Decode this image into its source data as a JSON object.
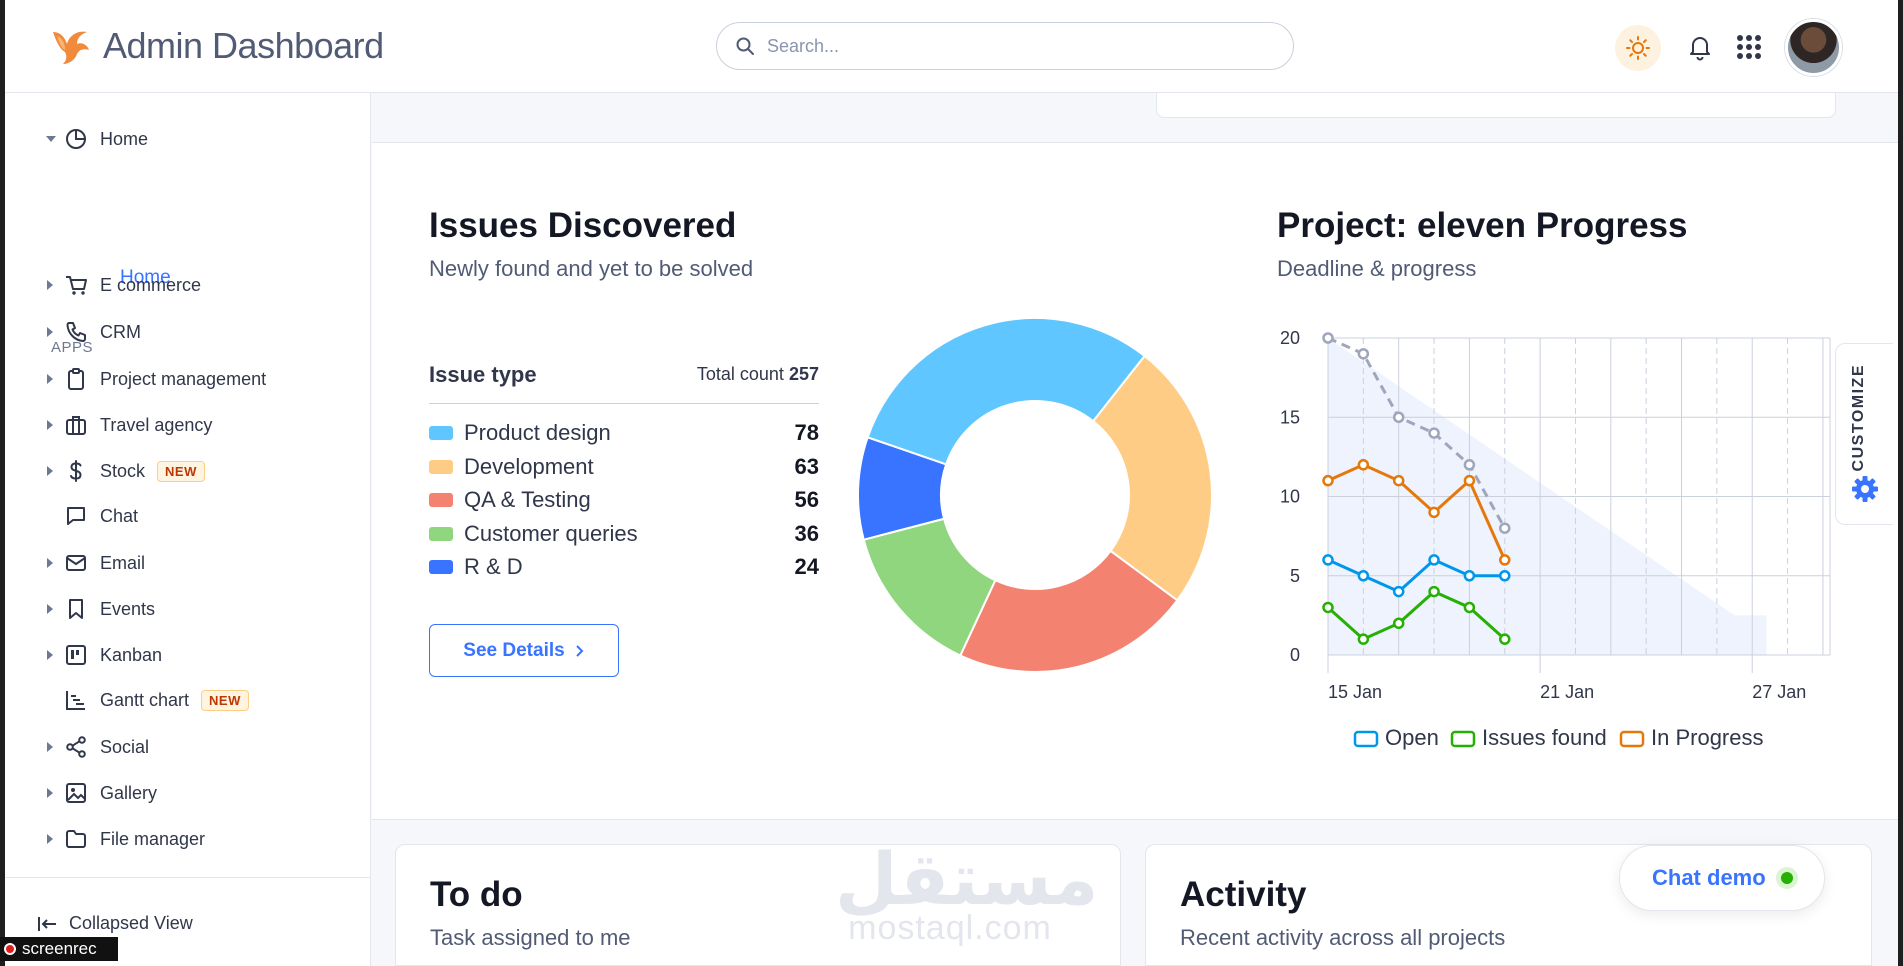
{
  "header": {
    "brand": "Admin Dashboard",
    "search_placeholder": "Search..."
  },
  "sidebar": {
    "home_group": "Home",
    "home_sub": "Home",
    "apps_label": "APPS",
    "items": [
      {
        "label": "E commerce",
        "icon": "cart-icon"
      },
      {
        "label": "CRM",
        "icon": "phone-icon"
      },
      {
        "label": "Project management",
        "icon": "clipboard-icon"
      },
      {
        "label": "Travel agency",
        "icon": "briefcase-icon"
      },
      {
        "label": "Stock",
        "icon": "dollar-icon",
        "badge": "NEW"
      },
      {
        "label": "Chat",
        "icon": "message-icon"
      },
      {
        "label": "Email",
        "icon": "mail-icon"
      },
      {
        "label": "Events",
        "icon": "bookmark-icon"
      },
      {
        "label": "Kanban",
        "icon": "kanban-icon"
      },
      {
        "label": "Gantt chart",
        "icon": "gantt-icon",
        "badge": "NEW"
      },
      {
        "label": "Social",
        "icon": "share-icon"
      },
      {
        "label": "Gallery",
        "icon": "image-icon"
      },
      {
        "label": "File manager",
        "icon": "folder-icon"
      }
    ],
    "collapsed_view": "Collapsed View"
  },
  "issues": {
    "title": "Issues Discovered",
    "subtitle": "Newly found and yet to be solved",
    "type_header": "Issue type",
    "total_label": "Total count",
    "total_value": "257",
    "see_details": "See Details"
  },
  "progress": {
    "title": "Project: eleven Progress",
    "subtitle": "Deadline & progress"
  },
  "customize_label": "CUSTOMIZE",
  "todo": {
    "title": "To do",
    "subtitle": "Task assigned to me"
  },
  "activity": {
    "title": "Activity",
    "subtitle": "Recent activity across all projects"
  },
  "chat_demo": "Chat demo",
  "watermark": {
    "arabic": "مستقل",
    "latin": "mostaql.com"
  },
  "recorder": "screenrec",
  "colors": {
    "primary": "#3874ff",
    "online": "#25b003"
  },
  "chart_data": [
    {
      "type": "pie",
      "donut": true,
      "categories": [
        "Product design",
        "Development",
        "QA & Testing",
        "Customer queries",
        "R & D"
      ],
      "values": [
        78,
        63,
        56,
        36,
        24
      ],
      "colors": [
        "#60c6ff",
        "#ffcc85",
        "#f48270",
        "#90d67f",
        "#3874ff"
      ]
    },
    {
      "type": "line",
      "x": [
        "15 Jan",
        "16 Jan",
        "17 Jan",
        "18 Jan",
        "19 Jan",
        "20 Jan"
      ],
      "x_ticks": [
        "15 Jan",
        "21 Jan",
        "27 Jan"
      ],
      "ylim": [
        0,
        20
      ],
      "y_ticks": [
        0,
        5,
        10,
        15,
        20
      ],
      "grid": true,
      "legend_position": "bottom",
      "series": [
        {
          "name": "Open",
          "color": "#0097eb",
          "values": [
            6,
            5,
            4,
            6,
            5,
            5
          ]
        },
        {
          "name": "Issues found",
          "color": "#25b003",
          "values": [
            3,
            1,
            2,
            4,
            3,
            1
          ]
        },
        {
          "name": "In Progress",
          "color": "#e5780b",
          "values": [
            11,
            12,
            11,
            9,
            11,
            6
          ]
        }
      ],
      "burndown": {
        "color": "#9fa6bc",
        "dashed": true,
        "values": [
          20,
          19,
          15,
          14,
          12,
          8
        ]
      }
    }
  ]
}
